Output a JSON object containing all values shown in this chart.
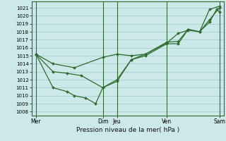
{
  "background_color": "#cce8e8",
  "grid_color": "#99cccc",
  "line_color": "#2d6b2d",
  "xlabel": "Pression niveau de la mer( hPa )",
  "ylim": [
    1007.5,
    1021.8
  ],
  "yticks": [
    1008,
    1009,
    1010,
    1011,
    1012,
    1013,
    1014,
    1015,
    1016,
    1017,
    1018,
    1019,
    1020,
    1021
  ],
  "xlim": [
    0,
    13.5
  ],
  "xtick_labels": [
    "Mer",
    "Dim",
    "Jeu",
    "Ven",
    "Sam"
  ],
  "xtick_positions": [
    0.3,
    5.0,
    6.0,
    9.5,
    13.2
  ],
  "vlines": [
    0.3,
    5.0,
    6.0,
    9.5,
    13.2
  ],
  "series": [
    {
      "x": [
        0.3,
        1.5,
        3.0,
        5.0,
        6.0,
        7.0,
        8.0,
        9.5,
        10.3,
        11.0,
        11.8,
        12.5,
        13.0,
        13.2
      ],
      "y": [
        1015.2,
        1014.0,
        1013.5,
        1014.8,
        1015.2,
        1015.0,
        1015.2,
        1016.6,
        1017.8,
        1018.2,
        1018.0,
        1019.2,
        1020.8,
        1020.5
      ]
    },
    {
      "x": [
        0.3,
        1.5,
        2.5,
        3.5,
        5.0,
        6.0,
        7.0,
        8.0,
        9.5,
        10.3,
        11.0,
        11.8,
        12.5,
        13.2
      ],
      "y": [
        1015.2,
        1013.0,
        1012.8,
        1012.5,
        1011.0,
        1011.8,
        1014.5,
        1015.2,
        1016.7,
        1016.8,
        1018.3,
        1018.0,
        1019.5,
        1021.0
      ]
    },
    {
      "x": [
        0.3,
        1.5,
        2.5,
        3.0,
        3.8,
        4.5,
        5.0,
        6.0,
        7.0,
        8.0,
        9.5,
        10.3,
        11.0,
        11.8,
        12.5,
        13.2
      ],
      "y": [
        1015.2,
        1011.0,
        1010.5,
        1010.0,
        1009.7,
        1009.0,
        1011.0,
        1012.0,
        1014.5,
        1015.0,
        1016.5,
        1016.5,
        1018.3,
        1018.0,
        1020.8,
        1021.2
      ]
    }
  ]
}
